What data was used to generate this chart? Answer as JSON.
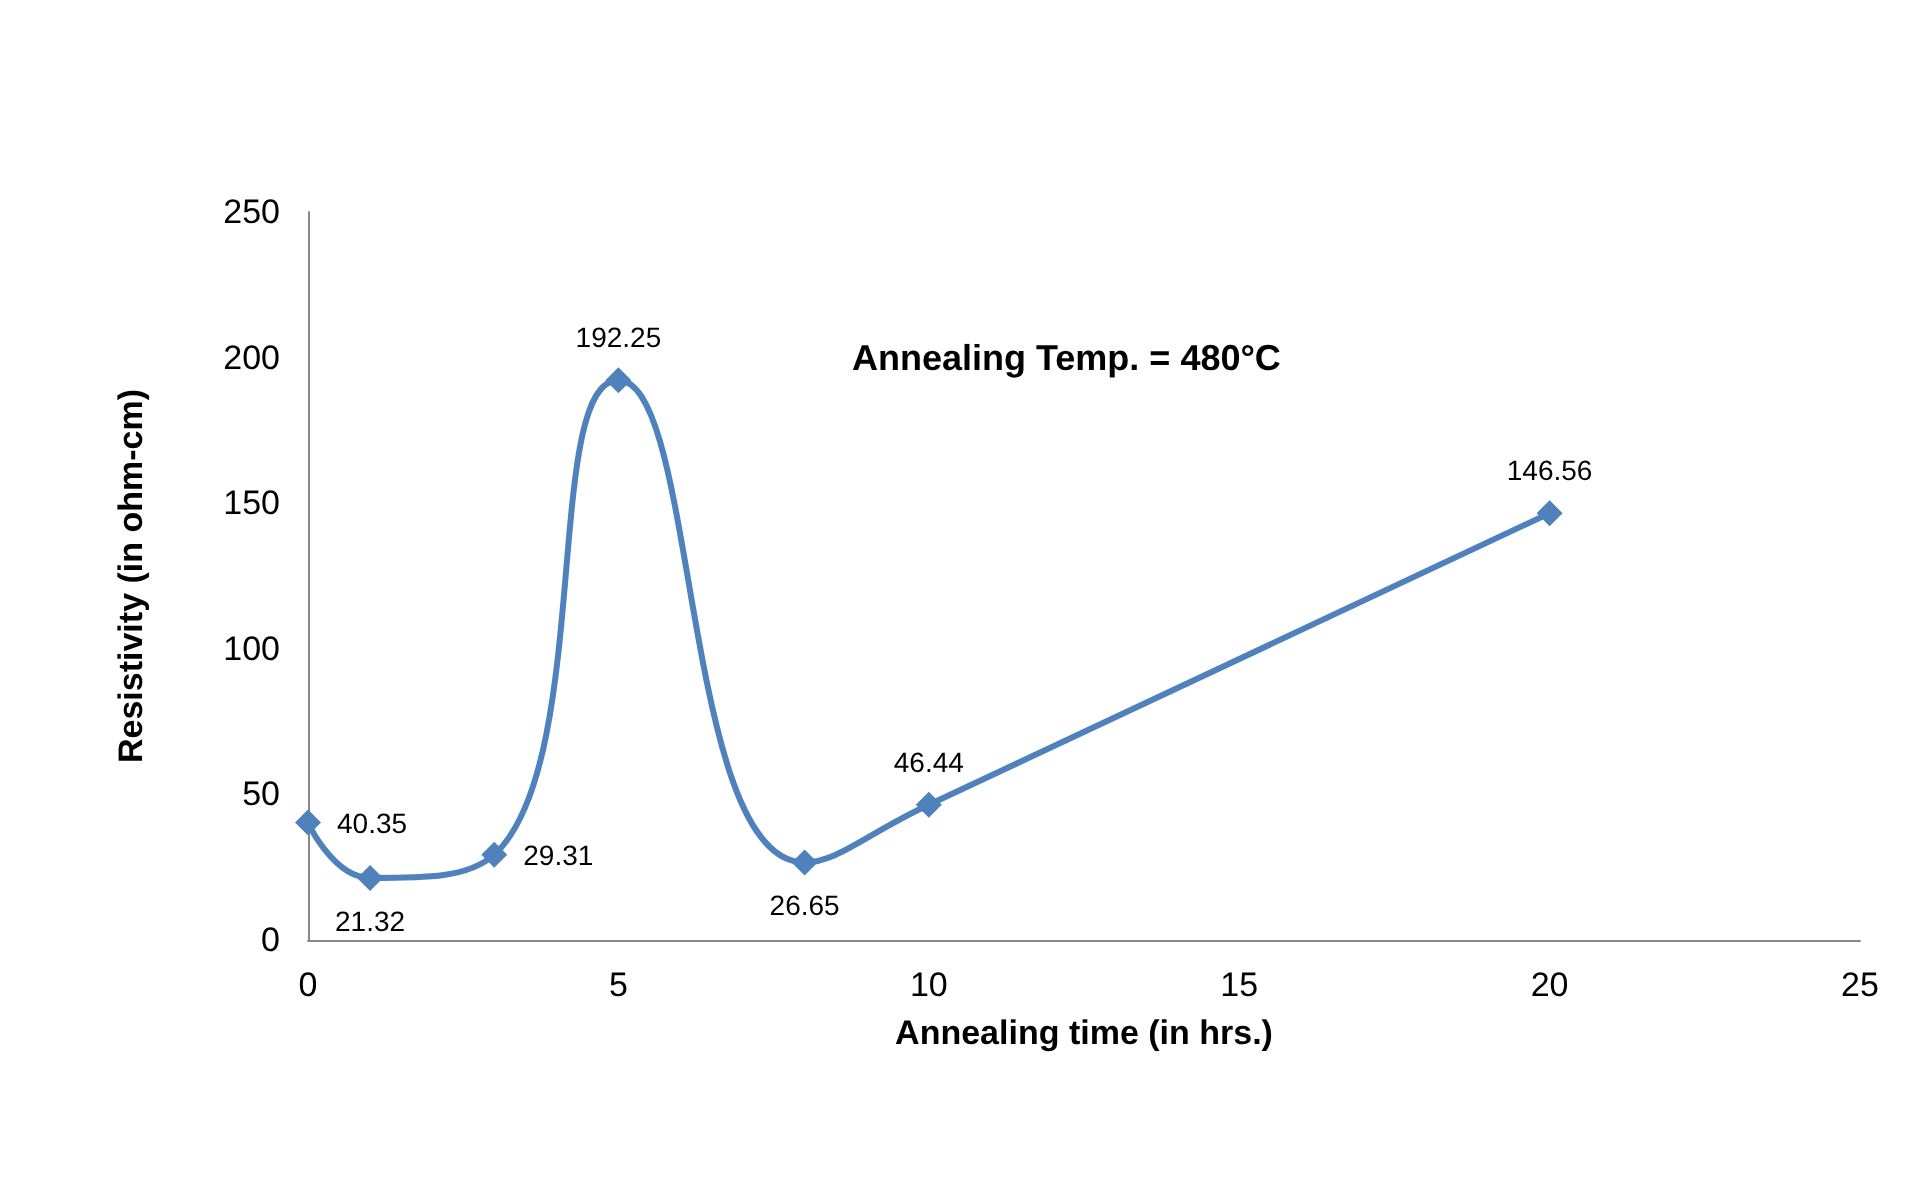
{
  "chart_data": {
    "type": "line",
    "xlabel": "Annealing time (in hrs.)",
    "ylabel": "Resistivity (in ohm-cm)",
    "annotations": [
      "Annealing Temp. = 480°C"
    ],
    "x": [
      0,
      1,
      3,
      5,
      8,
      10,
      20
    ],
    "series": [
      {
        "color": "#4f81bd",
        "values": [
          40.35,
          21.32,
          29.31,
          192.25,
          26.65,
          46.44,
          146.56
        ]
      }
    ],
    "xlim": [
      0,
      25
    ],
    "xticks": [
      0,
      5,
      10,
      15,
      20,
      25
    ],
    "ylim": [
      0,
      250
    ],
    "yticks": [
      0,
      50,
      100,
      150,
      200,
      250
    ],
    "grid": false,
    "marker": "diamond",
    "line_style": "solid",
    "data_labels": true
  }
}
